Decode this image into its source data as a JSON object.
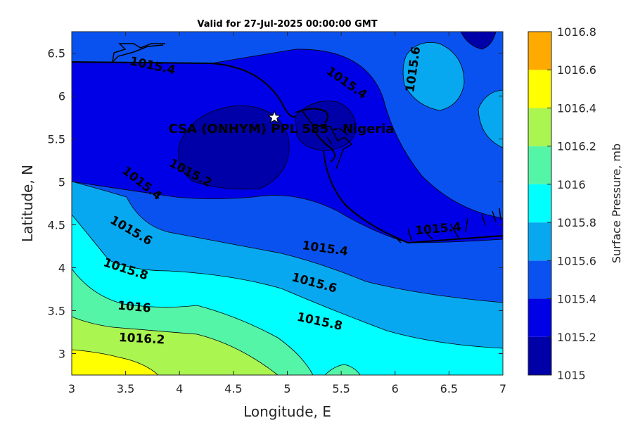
{
  "chart_data": {
    "type": "contour",
    "title": "Valid for 27-Jul-2025 00:00:00 GMT",
    "xlabel": "Longitude, E",
    "ylabel": "Latitude, N",
    "xlim": [
      3,
      7
    ],
    "ylim": [
      2.75,
      6.75
    ],
    "xticks": [
      "3",
      "3.5",
      "4",
      "4.5",
      "5",
      "5.5",
      "6",
      "6.5",
      "7"
    ],
    "yticks": [
      "3",
      "3.5",
      "4",
      "4.5",
      "5",
      "5.5",
      "6",
      "6.5"
    ],
    "colorbar": {
      "label": "Surface Pressure, mb",
      "levels": [
        "1015",
        "1015.2",
        "1015.4",
        "1015.6",
        "1015.8",
        "1016",
        "1016.2",
        "1016.4",
        "1016.6",
        "1016.8"
      ],
      "colors": [
        "#0000a8",
        "#0000e6",
        "#0a52f0",
        "#08a8f0",
        "#00ffff",
        "#55f5a8",
        "#aaf550",
        "#ffff00",
        "#ffaa00",
        "#ff5500"
      ]
    },
    "contour_labels": [
      {
        "text": "1015.4",
        "lon": 3.75,
        "lat": 6.35
      },
      {
        "text": "1015.4",
        "lon": 5.55,
        "lat": 6.15
      },
      {
        "text": "1015.6",
        "lon": 6.17,
        "lat": 6.31
      },
      {
        "text": "1015.2",
        "lon": 4.1,
        "lat": 5.1
      },
      {
        "text": "1015.4",
        "lon": 3.65,
        "lat": 4.98
      },
      {
        "text": "1015.6",
        "lon": 3.55,
        "lat": 4.43
      },
      {
        "text": "1015.4",
        "lon": 5.35,
        "lat": 4.22
      },
      {
        "text": "1015.4",
        "lon": 6.4,
        "lat": 4.45
      },
      {
        "text": "1015.8",
        "lon": 3.5,
        "lat": 3.98
      },
      {
        "text": "1015.6",
        "lon": 5.25,
        "lat": 3.82
      },
      {
        "text": "1015.8",
        "lon": 5.3,
        "lat": 3.37
      },
      {
        "text": "1016",
        "lon": 3.58,
        "lat": 3.54
      },
      {
        "text": "1016.2",
        "lon": 3.65,
        "lat": 3.17
      }
    ],
    "site": {
      "name": "CSA (ONHYM) PPL 585 - Nigeria",
      "lon": 4.88,
      "lat": 5.75
    }
  }
}
